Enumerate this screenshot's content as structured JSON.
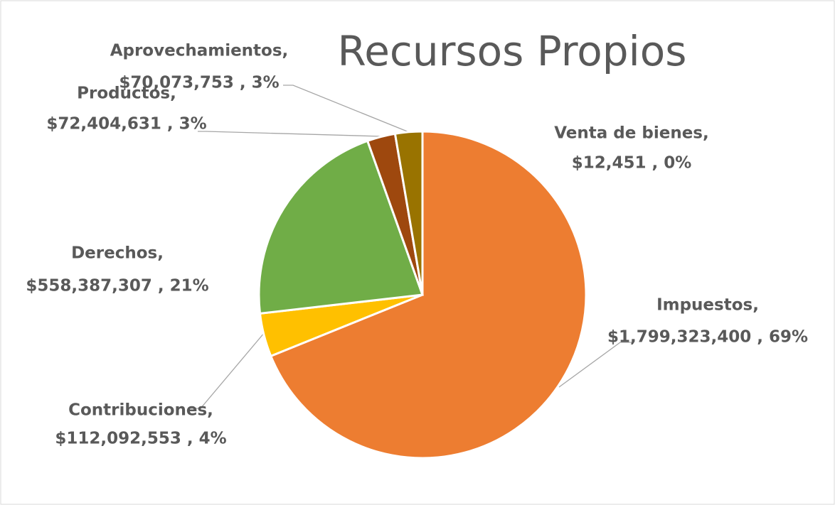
{
  "chart_data": {
    "type": "pie",
    "title": "Recursos Propios",
    "categories": [
      "Venta de bienes,",
      "Impuestos,",
      "Contribuciones,",
      "Derechos,",
      "Productos,",
      "Aprovechamientos,"
    ],
    "values": [
      12451,
      1799323400,
      112092553,
      558387307,
      72404631,
      70073753
    ],
    "value_labels": [
      "$12,451 , 0%",
      "$1,799,323,400 , 69%",
      "$112,092,553 , 4%",
      "$558,387,307 , 21%",
      "$72,404,631 , 3%",
      "$70,073,753 , 3%"
    ],
    "colors": [
      "#5b9bd5",
      "#ed7d31",
      "#ffc000",
      "#70ad47",
      "#9e480e",
      "#997300"
    ]
  }
}
